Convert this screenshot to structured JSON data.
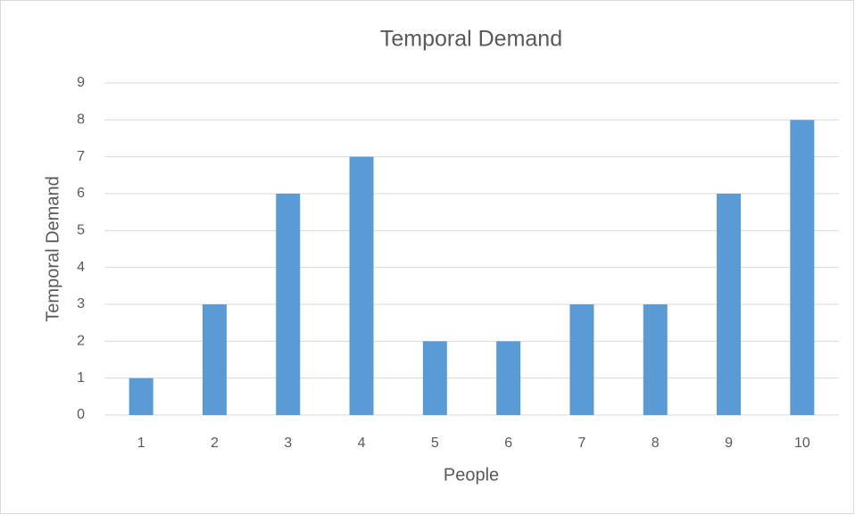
{
  "chart_data": {
    "type": "bar",
    "title": "Temporal Demand",
    "x_label": "People",
    "y_label": "Temporal Demand",
    "categories": [
      "1",
      "2",
      "3",
      "4",
      "5",
      "6",
      "7",
      "8",
      "9",
      "10"
    ],
    "values": [
      1,
      3,
      6,
      7,
      2,
      2,
      3,
      3,
      6,
      8
    ],
    "color": "#5b9bd5",
    "ylim": [
      0,
      9
    ],
    "yticks": [
      0,
      1,
      2,
      3,
      4,
      5,
      6,
      7,
      8,
      9
    ],
    "grid": true
  }
}
